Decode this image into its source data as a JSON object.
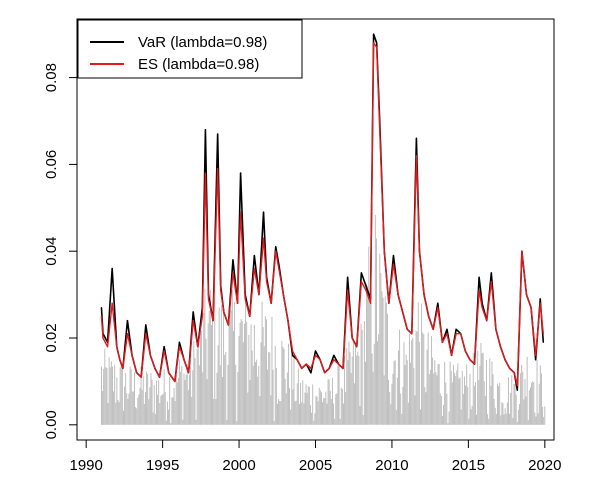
{
  "chart_data": {
    "type": "line",
    "title": "",
    "xlabel": "",
    "ylabel": "",
    "xlim": [
      1990,
      2020
    ],
    "ylim": [
      0,
      0.09
    ],
    "x_ticks": [
      1990,
      1995,
      2000,
      2005,
      2010,
      2015,
      2020
    ],
    "x_tick_labels": [
      "1990",
      "1995",
      "2000",
      "2005",
      "2010",
      "2015",
      "2020"
    ],
    "y_ticks": [
      0.0,
      0.02,
      0.04,
      0.06,
      0.08
    ],
    "y_tick_labels": [
      "0.00",
      "0.02",
      "0.04",
      "0.06",
      "0.08"
    ],
    "grid": false,
    "legend_position": "top-left",
    "x": [
      1991.0,
      1991.1,
      1991.4,
      1991.7,
      1992.0,
      1992.2,
      1992.4,
      1992.7,
      1993.0,
      1993.3,
      1993.6,
      1993.9,
      1994.2,
      1994.5,
      1994.8,
      1995.1,
      1995.4,
      1995.8,
      1996.1,
      1996.4,
      1996.7,
      1997.0,
      1997.3,
      1997.6,
      1997.8,
      1998.0,
      1998.3,
      1998.6,
      1998.8,
      1999.0,
      1999.3,
      1999.6,
      1999.9,
      2000.1,
      2000.4,
      2000.7,
      2001.0,
      2001.3,
      2001.6,
      2001.8,
      2002.1,
      2002.4,
      2002.6,
      2002.9,
      2003.2,
      2003.5,
      2003.8,
      2004.1,
      2004.4,
      2004.7,
      2005.0,
      2005.3,
      2005.6,
      2005.9,
      2006.2,
      2006.5,
      2006.8,
      2007.1,
      2007.4,
      2007.7,
      2008.0,
      2008.3,
      2008.6,
      2008.8,
      2009.0,
      2009.2,
      2009.5,
      2009.8,
      2010.1,
      2010.4,
      2010.7,
      2011.0,
      2011.3,
      2011.6,
      2011.8,
      2012.1,
      2012.4,
      2012.7,
      2013.0,
      2013.3,
      2013.6,
      2013.9,
      2014.2,
      2014.5,
      2014.8,
      2015.1,
      2015.4,
      2015.7,
      2015.9,
      2016.2,
      2016.5,
      2016.8,
      2017.1,
      2017.4,
      2017.7,
      2018.0,
      2018.2,
      2018.5,
      2018.8,
      2019.1,
      2019.4,
      2019.7,
      2019.9
    ],
    "series": [
      {
        "name": "VaR (lambda=0.98)",
        "color": "#000000",
        "values": [
          0.027,
          0.021,
          0.019,
          0.036,
          0.018,
          0.015,
          0.013,
          0.024,
          0.016,
          0.012,
          0.011,
          0.023,
          0.016,
          0.013,
          0.011,
          0.018,
          0.012,
          0.01,
          0.019,
          0.015,
          0.012,
          0.026,
          0.018,
          0.027,
          0.068,
          0.03,
          0.024,
          0.067,
          0.032,
          0.026,
          0.023,
          0.038,
          0.028,
          0.058,
          0.03,
          0.025,
          0.039,
          0.03,
          0.049,
          0.034,
          0.028,
          0.041,
          0.037,
          0.03,
          0.024,
          0.016,
          0.015,
          0.013,
          0.014,
          0.012,
          0.017,
          0.015,
          0.012,
          0.013,
          0.016,
          0.014,
          0.013,
          0.034,
          0.02,
          0.018,
          0.035,
          0.032,
          0.029,
          0.09,
          0.088,
          0.07,
          0.04,
          0.028,
          0.039,
          0.03,
          0.026,
          0.022,
          0.021,
          0.066,
          0.04,
          0.03,
          0.025,
          0.022,
          0.028,
          0.019,
          0.022,
          0.016,
          0.022,
          0.021,
          0.017,
          0.015,
          0.014,
          0.034,
          0.028,
          0.024,
          0.035,
          0.022,
          0.018,
          0.015,
          0.013,
          0.012,
          0.008,
          0.04,
          0.03,
          0.027,
          0.015,
          0.029,
          0.019
        ]
      },
      {
        "name": "ES (lambda=0.98)",
        "color": "#e41a1c",
        "values": [
          0.025,
          0.02,
          0.018,
          0.028,
          0.018,
          0.015,
          0.013,
          0.021,
          0.016,
          0.012,
          0.011,
          0.021,
          0.016,
          0.013,
          0.011,
          0.017,
          0.012,
          0.01,
          0.018,
          0.015,
          0.012,
          0.024,
          0.018,
          0.025,
          0.058,
          0.029,
          0.024,
          0.059,
          0.031,
          0.026,
          0.023,
          0.035,
          0.028,
          0.049,
          0.029,
          0.025,
          0.036,
          0.03,
          0.043,
          0.033,
          0.028,
          0.04,
          0.036,
          0.03,
          0.024,
          0.017,
          0.015,
          0.013,
          0.014,
          0.013,
          0.016,
          0.015,
          0.012,
          0.013,
          0.015,
          0.014,
          0.013,
          0.031,
          0.02,
          0.018,
          0.033,
          0.031,
          0.028,
          0.088,
          0.087,
          0.068,
          0.04,
          0.028,
          0.037,
          0.03,
          0.026,
          0.022,
          0.021,
          0.062,
          0.04,
          0.03,
          0.025,
          0.022,
          0.027,
          0.019,
          0.021,
          0.016,
          0.021,
          0.021,
          0.017,
          0.015,
          0.014,
          0.031,
          0.027,
          0.024,
          0.033,
          0.022,
          0.018,
          0.015,
          0.013,
          0.012,
          0.009,
          0.04,
          0.03,
          0.027,
          0.016,
          0.028,
          0.021
        ]
      }
    ],
    "background_bars": {
      "color": "#bebebe",
      "description_value_range": [
        0,
        0.054
      ],
      "x_start": 1991.0,
      "x_end": 2020.0,
      "envelope_x": [
        1991,
        1993,
        1995,
        1997,
        1998,
        1999,
        2000,
        2001,
        2002,
        2003,
        2004,
        2005,
        2006,
        2007,
        2008,
        2008.8,
        2009.0,
        2009.5,
        2010,
        2011,
        2011.8,
        2012,
        2013,
        2014,
        2015,
        2016,
        2017,
        2018,
        2019,
        2020
      ],
      "envelope_y": [
        0.018,
        0.014,
        0.013,
        0.02,
        0.035,
        0.03,
        0.032,
        0.03,
        0.028,
        0.022,
        0.012,
        0.011,
        0.011,
        0.018,
        0.025,
        0.054,
        0.05,
        0.035,
        0.025,
        0.022,
        0.035,
        0.025,
        0.018,
        0.014,
        0.015,
        0.02,
        0.013,
        0.012,
        0.02,
        0.012
      ]
    }
  }
}
